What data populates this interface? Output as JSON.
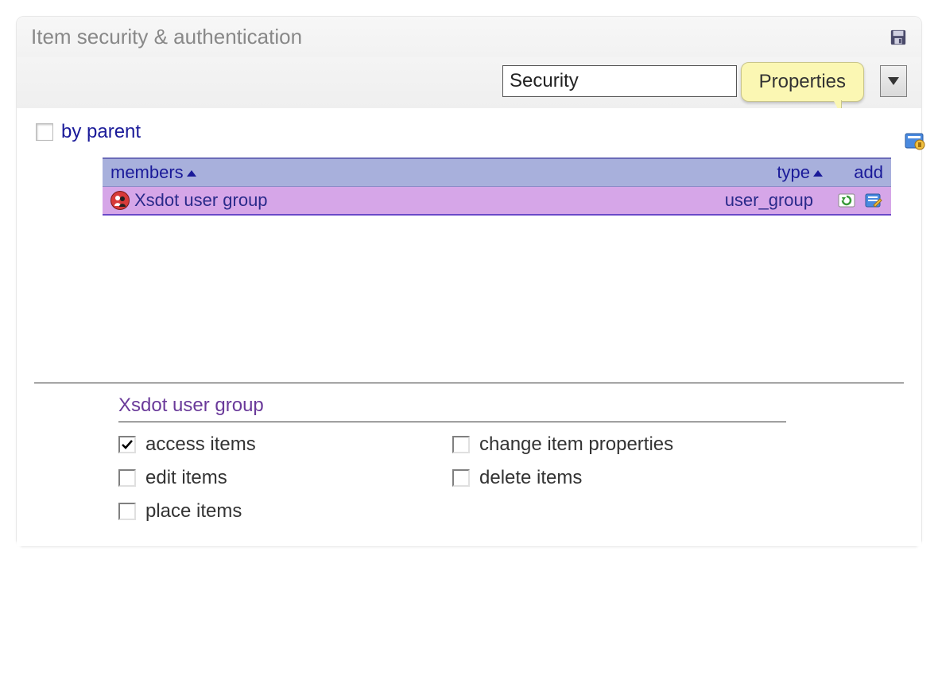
{
  "panel": {
    "title": "Item security & authentication",
    "background": "#ffffff",
    "title_color": "#888888",
    "title_fontsize": 26,
    "border_color": "#e8e8e8"
  },
  "toolbar": {
    "select_value": "Security",
    "tooltip_label": "Properties",
    "tooltip_bg": "#fbf7b3",
    "tooltip_border": "#c9c58a"
  },
  "by_parent": {
    "label": "by parent",
    "checked": false,
    "label_color": "#1a1a99"
  },
  "members_table": {
    "header_bg": "#a8b0dc",
    "row_bg": "#d6a6e8",
    "border_color": "#6a6ab8",
    "text_color": "#1a1a99",
    "columns": {
      "members": "members",
      "type": "type",
      "add": "add"
    },
    "rows": [
      {
        "name": "Xsdot user group",
        "type": "user_group",
        "icon": "group-icon"
      }
    ]
  },
  "permissions": {
    "title": "Xsdot user group",
    "title_color": "#6a3a9a",
    "items": [
      {
        "label": "access items",
        "checked": true
      },
      {
        "label": "edit items",
        "checked": false
      },
      {
        "label": "place items",
        "checked": false
      },
      {
        "label": "change item properties",
        "checked": false
      },
      {
        "label": "delete items",
        "checked": false
      }
    ],
    "layout_order": [
      0,
      3,
      1,
      4,
      2
    ]
  },
  "icons": {
    "save": "save-icon",
    "corner": "properties-target-icon",
    "dropdown": "chevron-down-icon",
    "refresh": "refresh-icon",
    "edit": "edit-icon"
  }
}
